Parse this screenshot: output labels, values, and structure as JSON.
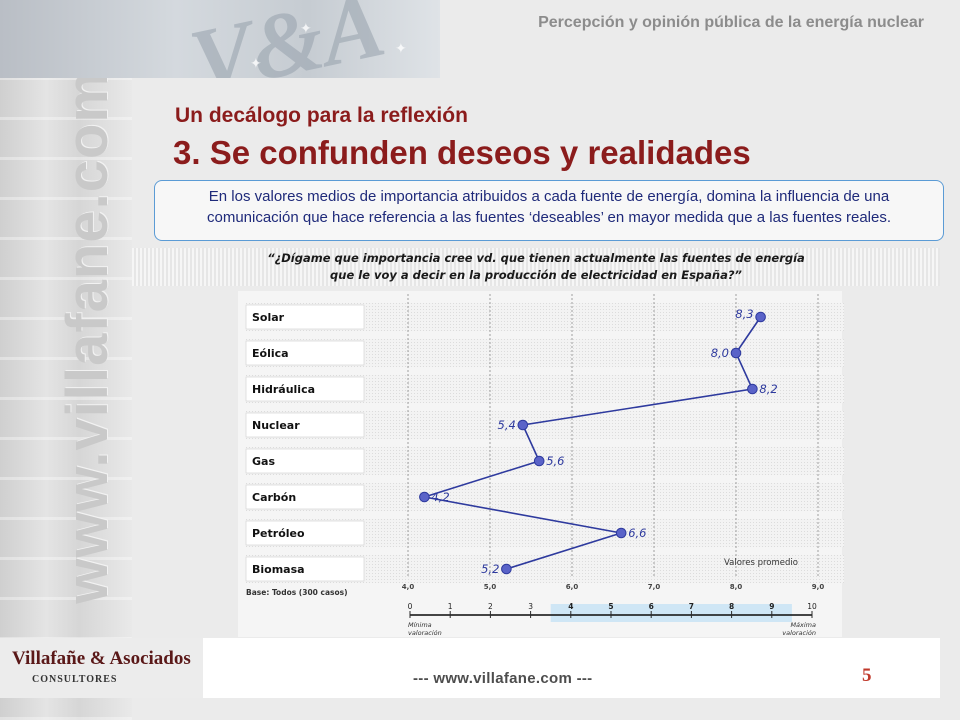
{
  "header": {
    "title": "Percepción y opinión pública de la energía nuclear",
    "watermark": "www.villafane.com"
  },
  "slide": {
    "subtitle": "Un decálogo para la reflexión",
    "title": "3. Se confunden deseos y realidades",
    "intro": "En los valores medios de importancia atribuidos a cada fuente de energía, domina la influencia de una comunicación que hace referencia a las fuentes ‘deseables’ en mayor medida que a las fuentes reales.",
    "question_line1": "“¿Dígame que importancia cree vd. que tienen actualmente las fuentes de energía",
    "question_line2": "que le voy a decir en la producción de electricidad en España?”"
  },
  "chart_data": {
    "type": "line",
    "orientation": "horizontal",
    "categories": [
      "Solar",
      "Eólica",
      "Hidráulica",
      "Nuclear",
      "Gas",
      "Carbón",
      "Petróleo",
      "Biomasa"
    ],
    "values": [
      8.3,
      8.0,
      8.2,
      5.4,
      5.6,
      4.2,
      6.6,
      5.2
    ],
    "value_labels": [
      "8,3",
      "8,0",
      "8,2",
      "5,4",
      "5,6",
      "4,2",
      "6,6",
      "5,2"
    ],
    "xlim": [
      4.0,
      9.0
    ],
    "xticks": [
      "4,0",
      "5,0",
      "6,0",
      "7,0",
      "8,0",
      "9,0"
    ],
    "annotation": "Valores promedio",
    "base_note": "Base: Todos (300 casos)",
    "scale": {
      "ticks": [
        "0",
        "1",
        "2",
        "3",
        "4",
        "5",
        "6",
        "7",
        "8",
        "9",
        "10"
      ],
      "highlighted": [
        "4",
        "5",
        "6",
        "7",
        "8",
        "9"
      ],
      "min_label_1": "Mínima",
      "min_label_2": "valoración",
      "max_label_1": "Máxima",
      "max_label_2": "valoración"
    },
    "colors": {
      "line": "#2e3a9e",
      "marker": "#5a63c8",
      "label": "#2e3a9e"
    },
    "grid": true
  },
  "footer": {
    "url": "--- www.villafane.com ---",
    "page": "5",
    "logo_line1": "Villafañe & Asociados",
    "logo_line2": "CONSULTORES"
  }
}
